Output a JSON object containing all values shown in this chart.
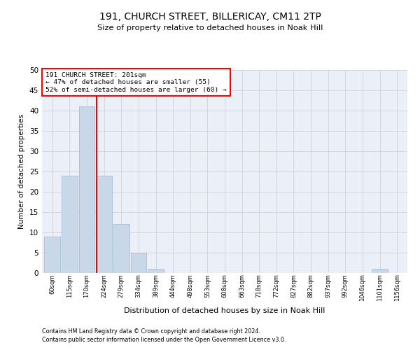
{
  "title1": "191, CHURCH STREET, BILLERICAY, CM11 2TP",
  "title2": "Size of property relative to detached houses in Noak Hill",
  "xlabel": "Distribution of detached houses by size in Noak Hill",
  "ylabel": "Number of detached properties",
  "bar_labels": [
    "60sqm",
    "115sqm",
    "170sqm",
    "224sqm",
    "279sqm",
    "334sqm",
    "389sqm",
    "444sqm",
    "498sqm",
    "553sqm",
    "608sqm",
    "663sqm",
    "718sqm",
    "772sqm",
    "827sqm",
    "882sqm",
    "937sqm",
    "992sqm",
    "1046sqm",
    "1101sqm",
    "1156sqm"
  ],
  "bar_values": [
    9,
    24,
    41,
    24,
    12,
    5,
    1,
    0,
    0,
    0,
    0,
    0,
    0,
    0,
    0,
    0,
    0,
    0,
    0,
    1,
    0
  ],
  "bar_color": "#c8d8e8",
  "bar_edgecolor": "#a8bfd0",
  "grid_color": "#cccccc",
  "bg_color": "#eaeff8",
  "annotation_lines": [
    "191 CHURCH STREET: 201sqm",
    "← 47% of detached houses are smaller (55)",
    "52% of semi-detached houses are larger (60) →"
  ],
  "annotation_box_color": "white",
  "annotation_box_edgecolor": "red",
  "ylim": [
    0,
    50
  ],
  "yticks": [
    0,
    5,
    10,
    15,
    20,
    25,
    30,
    35,
    40,
    45,
    50
  ],
  "footnote1": "Contains HM Land Registry data © Crown copyright and database right 2024.",
  "footnote2": "Contains public sector information licensed under the Open Government Licence v3.0."
}
